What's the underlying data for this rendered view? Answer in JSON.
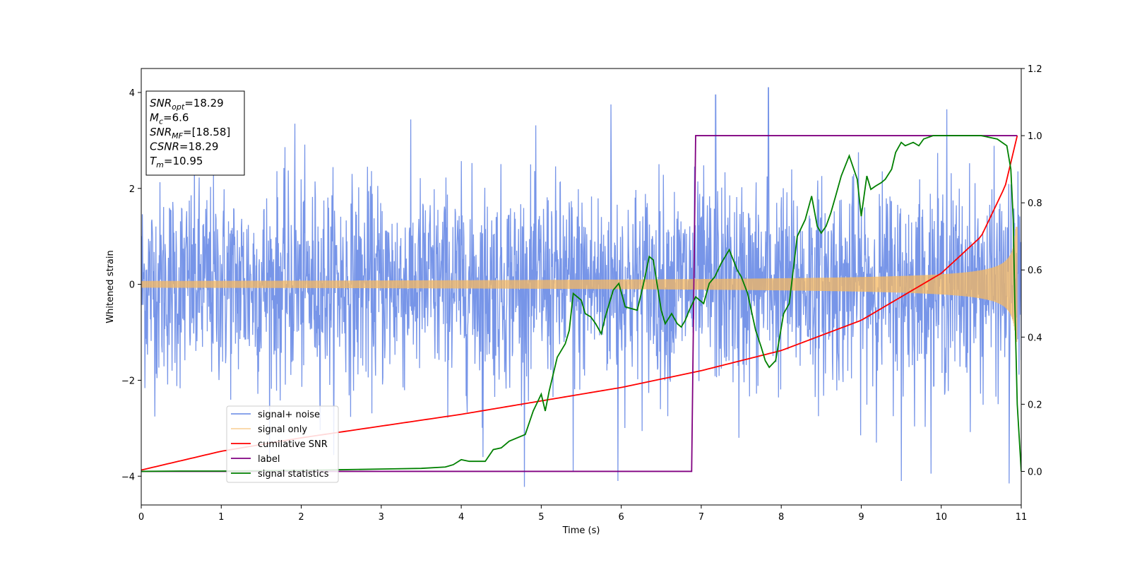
{
  "chart_data": {
    "type": "line",
    "xlabel": "Time (s)",
    "ylabel": "Whitened strain",
    "xlim": [
      0,
      11
    ],
    "ylim": [
      -4.6,
      4.5
    ],
    "y2lim": [
      -0.1,
      1.2
    ],
    "x_ticks": [
      "0",
      "1",
      "2",
      "3",
      "4",
      "5",
      "6",
      "7",
      "8",
      "9",
      "10",
      "11"
    ],
    "y_ticks": [
      "4",
      "2",
      "0",
      "−2",
      "−4"
    ],
    "y2_ticks": [
      "1.2",
      "1.0",
      "0.8",
      "0.6",
      "0.4",
      "0.2",
      "0.0"
    ],
    "grid": false,
    "legend_position": "lower-left",
    "stats_box": [
      {
        "main": "SNR",
        "sub": "opt",
        "value": "=18.29"
      },
      {
        "main": "M",
        "sub": "c",
        "value": "=6.6"
      },
      {
        "main": "SNR",
        "sub": "MF",
        "value": "=[18.58]"
      },
      {
        "main": "CSNR",
        "sub": "",
        "value": "=18.29"
      },
      {
        "main": "T",
        "sub": "m",
        "value": "=10.95"
      }
    ],
    "series": [
      {
        "name": "signal+ noise",
        "color": "#6b8ce6",
        "axis": "left",
        "kind": "noise",
        "std": 1.05,
        "extreme_spikes": [
          [
            1.92,
            3.35
          ],
          [
            4.27,
            -3.6
          ],
          [
            5.4,
            -3.9
          ],
          [
            5.87,
            3.75
          ],
          [
            5.96,
            -4.1
          ],
          [
            7.18,
            3.95
          ],
          [
            7.47,
            -3.2
          ],
          [
            7.84,
            4.1
          ],
          [
            9.5,
            -4.1
          ],
          [
            10.07,
            3.65
          ],
          [
            10.85,
            -4.15
          ]
        ]
      },
      {
        "name": "signal only",
        "color": "#f5b860",
        "axis": "left",
        "kind": "chirp",
        "amplitude_start": 0.07,
        "amplitude_end": 1.2,
        "merger_time": 10.95
      },
      {
        "name": "cumilative SNR",
        "color": "#ff0000",
        "axis": "right",
        "x": [
          0,
          1,
          2,
          3,
          4,
          5,
          6,
          7,
          8,
          9,
          10,
          10.5,
          10.8,
          10.95
        ],
        "y": [
          0.004,
          0.06,
          0.1,
          0.135,
          0.17,
          0.21,
          0.25,
          0.3,
          0.36,
          0.45,
          0.59,
          0.7,
          0.85,
          1.0
        ]
      },
      {
        "name": "label",
        "color": "#800080",
        "axis": "right",
        "x": [
          0,
          6.88,
          6.93,
          10.95
        ],
        "y": [
          0,
          0,
          1,
          1
        ]
      },
      {
        "name": "signal statistics",
        "color": "#008000",
        "axis": "right",
        "x": [
          0,
          0.5,
          1,
          1.5,
          2,
          2.5,
          3,
          3.5,
          3.8,
          3.9,
          4.0,
          4.1,
          4.3,
          4.4,
          4.5,
          4.6,
          4.8,
          4.9,
          5.0,
          5.05,
          5.1,
          5.2,
          5.3,
          5.35,
          5.4,
          5.5,
          5.55,
          5.62,
          5.68,
          5.75,
          5.8,
          5.9,
          5.97,
          6.05,
          6.2,
          6.27,
          6.35,
          6.4,
          6.5,
          6.55,
          6.63,
          6.7,
          6.75,
          6.8,
          6.85,
          6.93,
          7.03,
          7.1,
          7.17,
          7.25,
          7.35,
          7.45,
          7.5,
          7.58,
          7.68,
          7.75,
          7.8,
          7.85,
          7.93,
          8.03,
          8.1,
          8.2,
          8.3,
          8.38,
          8.45,
          8.5,
          8.56,
          8.62,
          8.68,
          8.75,
          8.85,
          8.95,
          9.0,
          9.07,
          9.12,
          9.18,
          9.25,
          9.3,
          9.38,
          9.43,
          9.5,
          9.55,
          9.65,
          9.72,
          9.78,
          9.9,
          10.0,
          10.1,
          10.2,
          10.3,
          10.5,
          10.7,
          10.82,
          10.87,
          10.9,
          10.92,
          10.95,
          11.0
        ],
        "y": [
          0.0,
          0.001,
          0.001,
          0.002,
          0.003,
          0.005,
          0.007,
          0.009,
          0.013,
          0.02,
          0.035,
          0.03,
          0.03,
          0.065,
          0.07,
          0.09,
          0.11,
          0.18,
          0.23,
          0.18,
          0.24,
          0.34,
          0.38,
          0.42,
          0.53,
          0.51,
          0.47,
          0.46,
          0.44,
          0.41,
          0.46,
          0.54,
          0.56,
          0.49,
          0.48,
          0.55,
          0.64,
          0.63,
          0.48,
          0.44,
          0.47,
          0.44,
          0.43,
          0.45,
          0.48,
          0.52,
          0.5,
          0.56,
          0.58,
          0.62,
          0.66,
          0.6,
          0.58,
          0.53,
          0.42,
          0.37,
          0.33,
          0.31,
          0.33,
          0.47,
          0.5,
          0.7,
          0.75,
          0.82,
          0.73,
          0.71,
          0.73,
          0.77,
          0.82,
          0.88,
          0.94,
          0.87,
          0.76,
          0.88,
          0.84,
          0.85,
          0.86,
          0.87,
          0.9,
          0.95,
          0.98,
          0.97,
          0.98,
          0.97,
          0.99,
          1.0,
          1.0,
          1.0,
          1.0,
          1.0,
          1.0,
          0.99,
          0.97,
          0.9,
          0.75,
          0.5,
          0.2,
          0.0
        ]
      }
    ]
  }
}
